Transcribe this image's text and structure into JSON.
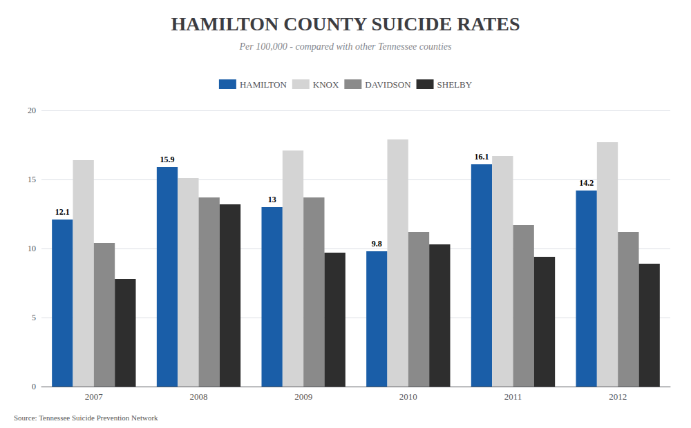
{
  "chart_data": {
    "type": "bar",
    "title": "HAMILTON COUNTY SUICIDE RATES",
    "subtitle": "Per 100,000 - compared with other Tennessee counties",
    "annotations": [
      "Source: Tennessee Suicide Prevention Network"
    ],
    "categories": [
      "2007",
      "2008",
      "2009",
      "2010",
      "2011",
      "2012"
    ],
    "series": [
      {
        "name": "HAMILTON",
        "color": "#1a5ea8",
        "values": [
          12.1,
          15.9,
          13.0,
          9.8,
          16.1,
          14.2
        ],
        "data_labels": true
      },
      {
        "name": "KNOX",
        "color": "#d4d4d4",
        "values": [
          16.4,
          15.1,
          17.1,
          17.9,
          16.7,
          17.7
        ]
      },
      {
        "name": "DAVIDSON",
        "color": "#8a8a8a",
        "values": [
          10.4,
          13.7,
          13.7,
          11.2,
          11.7,
          11.2
        ]
      },
      {
        "name": "SHELBY",
        "color": "#2e2e2e",
        "values": [
          7.8,
          13.2,
          9.7,
          10.3,
          9.4,
          8.9
        ]
      }
    ],
    "ylim": [
      0,
      20
    ],
    "yticks": [
      0,
      5,
      10,
      15,
      20
    ],
    "grid": true,
    "legend": "top"
  }
}
